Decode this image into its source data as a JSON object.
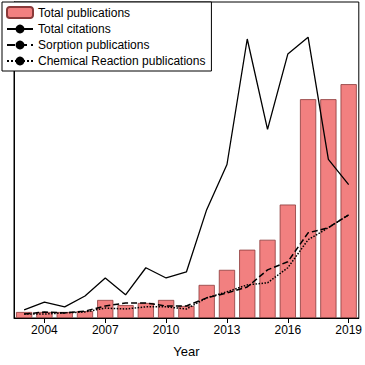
{
  "chart_data": {
    "type": "bar",
    "x_label": "Year",
    "categories": [
      null,
      "2004",
      null,
      null,
      "2007",
      null,
      null,
      "2010",
      null,
      null,
      "2013",
      null,
      null,
      "2016",
      null,
      null,
      "2019"
    ],
    "ylim": [
      0,
      105
    ],
    "tick_labels": "x",
    "grid": false,
    "legend": "upper left",
    "series": [
      {
        "name": "Total publications",
        "type": "bar",
        "color": "#f28080",
        "values": [
          2,
          2,
          2,
          2.3,
          6,
          4.3,
          5,
          6,
          4,
          11,
          16,
          22.7,
          26,
          37.7,
          72.7,
          72.7,
          77.7
        ]
      },
      {
        "name": "Total citations",
        "type": "line",
        "color": "#000000",
        "line_style": "solid",
        "values": [
          2.7,
          5.3,
          3.7,
          7.3,
          13.3,
          7.7,
          16.7,
          13.3,
          15.3,
          36,
          51,
          92.7,
          62.7,
          87.7,
          93.3,
          52.7,
          44.3
        ]
      },
      {
        "name": "Sorption publications",
        "type": "line",
        "color": "#000000",
        "line_style": "dashed",
        "values": [
          1.3,
          2,
          1.7,
          2.3,
          4,
          5,
          5,
          4,
          4,
          6.7,
          8.3,
          10.3,
          16,
          18.7,
          28.3,
          30,
          34.3
        ]
      },
      {
        "name": "Chemical Reaction publications",
        "type": "line",
        "color": "#000000",
        "line_style": "dotted",
        "values": [
          1.3,
          1.3,
          1.7,
          2,
          3.3,
          3,
          3.7,
          3.7,
          3,
          6.7,
          8.7,
          11,
          11.7,
          16.7,
          26,
          30,
          34.3
        ]
      }
    ]
  }
}
